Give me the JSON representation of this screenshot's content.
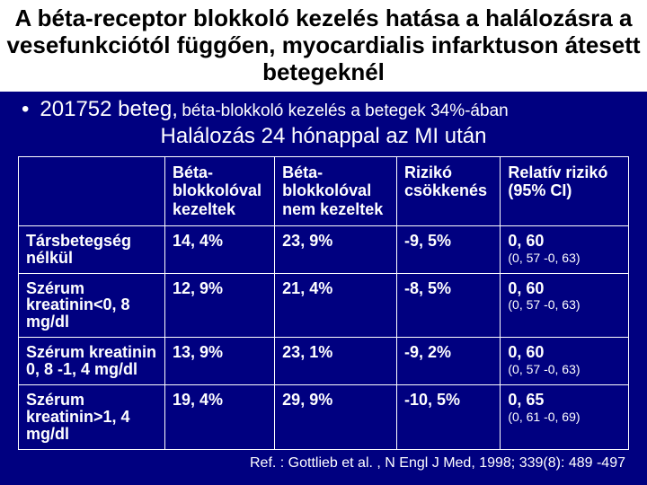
{
  "title": "A béta-receptor blokkoló kezelés hatása a halálozásra a vesefunkciótól függően, myocardialis infarktuson átesett betegeknél",
  "bullet_main": "201752 beteg,",
  "bullet_sub": "béta-blokkoló kezelés a betegek 34%-ában",
  "subtitle": "Halálozás 24 hónappal az MI után",
  "headers": {
    "c0": "",
    "c1": "Béta-blokkolóval kezeltek",
    "c2": "Béta-blokkolóval nem kezeltek",
    "c3": "Rizikó csökkenés",
    "c4_a": "Relatív rizikó",
    "c4_b": "(95% CI)"
  },
  "rows": [
    {
      "label": "Társbetegség nélkül",
      "treated": "14, 4%",
      "untreated": "23, 9%",
      "reduction": "-9, 5%",
      "rr": "0, 60",
      "ci": "(0, 57 -0, 63)"
    },
    {
      "label": "Szérum kreatinin<0, 8 mg/dl",
      "treated": "12, 9%",
      "untreated": "21, 4%",
      "reduction": "-8, 5%",
      "rr": "0, 60",
      "ci": "(0, 57 -0, 63)"
    },
    {
      "label": "Szérum kreatinin 0, 8 -1, 4 mg/dl",
      "treated": "13, 9%",
      "untreated": "23, 1%",
      "reduction": "-9, 2%",
      "rr": "0, 60",
      "ci": "(0, 57 -0, 63)"
    },
    {
      "label": "Szérum kreatinin>1, 4 mg/dl",
      "treated": "19, 4%",
      "untreated": "29, 9%",
      "reduction": "-10, 5%",
      "rr": "0, 65",
      "ci": "(0, 61 -0, 69)"
    }
  ],
  "reference": "Ref. : Gottlieb et al. , N Engl J Med, 1998; 339(8): 489 -497",
  "colors": {
    "background": "#000080",
    "text": "#ffffff",
    "title_bg": "#ffffff",
    "title_text": "#000000",
    "border": "#ffffff"
  }
}
